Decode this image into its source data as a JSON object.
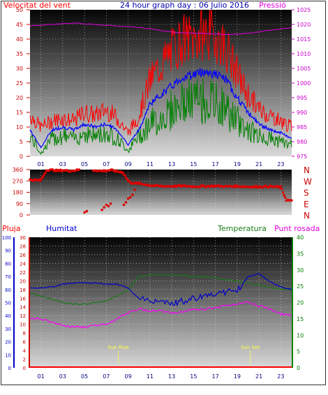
{
  "header": {
    "left_label": "Velocitat del vent",
    "title": "24 hour graph day : 06 Julio 2016",
    "right_label": "Pressió"
  },
  "panel3_labels": {
    "pluja": "Pluja",
    "humitat": "Humitat",
    "temperatura": "Temperatura",
    "punt_rosada": "Punt rosada"
  },
  "colors": {
    "wind_gust": "#ff0000",
    "wind_avg": "#0000ff",
    "wind_min": "#008000",
    "pressure": "#e000e0",
    "direction": "#dd0000",
    "humidity": "#0000cc",
    "temperature": "#1a7a1a",
    "dewpoint": "#ff00ff",
    "rain": "#ff0000",
    "sun_markers": "#ffff44"
  },
  "chart_data": [
    {
      "type": "line",
      "name": "wind_pressure",
      "x_tick_labels": [
        "01",
        "03",
        "05",
        "07",
        "09",
        "11",
        "13",
        "15",
        "17",
        "19",
        "21",
        "23"
      ],
      "y_left_label": "Velocitat del vent",
      "y_left_range": [
        0,
        50
      ],
      "y_left_ticks": [
        "0",
        "5",
        "10",
        "15",
        "20",
        "25",
        "30",
        "35",
        "40",
        "45",
        "50"
      ],
      "y_right_label": "Pressió",
      "y_right_range": [
        975,
        1025
      ],
      "y_right_ticks": [
        "975",
        "980",
        "985",
        "990",
        "995",
        "1000",
        "1005",
        "1010",
        "1015",
        "1020",
        "1025"
      ],
      "series": [
        {
          "name": "gust",
          "x": [
            0,
            1,
            2,
            3,
            4,
            5,
            6,
            7,
            8,
            9,
            10,
            11,
            12,
            13,
            14,
            15,
            16,
            17,
            18,
            19,
            20,
            21,
            22,
            23,
            24
          ],
          "values": [
            14,
            10,
            12,
            13,
            12,
            15,
            14,
            16,
            13,
            8,
            14,
            26,
            31,
            36,
            40,
            40,
            42,
            41,
            37,
            28,
            21,
            16,
            14,
            12,
            10
          ]
        },
        {
          "name": "average",
          "x": [
            0,
            1,
            2,
            3,
            4,
            5,
            6,
            7,
            8,
            9,
            10,
            11,
            12,
            13,
            14,
            15,
            16,
            17,
            18,
            19,
            20,
            21,
            22,
            23,
            24
          ],
          "values": [
            9,
            3,
            9,
            10,
            9,
            11,
            10,
            11,
            9,
            4,
            9,
            18,
            21,
            24,
            27,
            28,
            29,
            28,
            26,
            20,
            15,
            11,
            9,
            8,
            6
          ]
        },
        {
          "name": "minimum",
          "x": [
            0,
            1,
            2,
            3,
            4,
            5,
            6,
            7,
            8,
            9,
            10,
            11,
            12,
            13,
            14,
            15,
            16,
            17,
            18,
            19,
            20,
            21,
            22,
            23,
            24
          ],
          "values": [
            7,
            1,
            6,
            7,
            6,
            8,
            7,
            8,
            6,
            2,
            7,
            11,
            13,
            16,
            18,
            19,
            19,
            18,
            16,
            12,
            9,
            7,
            6,
            5,
            4
          ]
        },
        {
          "name": "pressure",
          "x": [
            0,
            2,
            4,
            6,
            8,
            10,
            12,
            14,
            16,
            18,
            20,
            22,
            24
          ],
          "values": [
            1019.5,
            1020,
            1020.5,
            1020,
            1019.5,
            1019,
            1018,
            1017,
            1017,
            1016.5,
            1017,
            1018,
            1019
          ]
        }
      ]
    },
    {
      "type": "scatter",
      "name": "wind_direction",
      "x_tick_labels": [],
      "y_range": [
        0,
        360
      ],
      "y_ticks": [
        "0",
        "90",
        "180",
        "270",
        "360"
      ],
      "y_right_letters": [
        "N",
        "W",
        "S",
        "E",
        "N"
      ],
      "series": [
        {
          "name": "direction",
          "x": [
            0,
            0.5,
            1,
            1.5,
            2,
            2.5,
            3,
            3.5,
            4,
            4.5,
            5,
            5.5,
            6,
            6.5,
            7,
            7.5,
            8,
            8.5,
            9,
            9.5,
            10,
            11,
            12,
            13,
            14,
            15,
            16,
            17,
            18,
            19,
            20,
            21,
            22,
            23,
            23.5,
            24
          ],
          "values": [
            280,
            275,
            275,
            355,
            360,
            350,
            355,
            350,
            352,
            360,
            345,
            350,
            355,
            348,
            352,
            355,
            345,
            340,
            270,
            250,
            250,
            235,
            228,
            228,
            230,
            226,
            228,
            230,
            226,
            228,
            224,
            224,
            226,
            220,
            120,
            110
          ]
        },
        {
          "name": "direction_scatter",
          "x": [
            5,
            5.2,
            6.6,
            6.8,
            7.0,
            7.2,
            7.4,
            8.6,
            8.8,
            9.0,
            9.2,
            9.4,
            9.6
          ],
          "values": [
            20,
            30,
            40,
            60,
            80,
            70,
            90,
            80,
            100,
            130,
            140,
            160,
            200
          ]
        }
      ]
    },
    {
      "type": "line",
      "name": "humidity_temperature",
      "x_tick_labels": [
        "01",
        "03",
        "05",
        "07",
        "09",
        "11",
        "13",
        "15",
        "17",
        "19",
        "21",
        "23"
      ],
      "y_pluja_range": [
        0,
        30
      ],
      "y_pluja_ticks": [
        "0",
        "2",
        "4",
        "6",
        "8",
        "10",
        "12",
        "14",
        "16",
        "18",
        "20",
        "22",
        "24",
        "26",
        "28",
        "30"
      ],
      "y_humitat_range": [
        0,
        100
      ],
      "y_humitat_ticks": [
        "0",
        "10",
        "20",
        "30",
        "40",
        "50",
        "60",
        "70",
        "80",
        "90",
        "100"
      ],
      "y_right_range": [
        0,
        40
      ],
      "y_right_ticks": [
        "0",
        "5",
        "10",
        "15",
        "20",
        "25",
        "30",
        "35",
        "40"
      ],
      "sun_markers": [
        {
          "label": "Sun Rise",
          "x": 8.1
        },
        {
          "label": "Sun Set",
          "x": 20.2
        }
      ],
      "series": [
        {
          "name": "Humitat",
          "x": [
            0,
            1,
            2,
            3,
            4,
            5,
            6,
            7,
            8,
            9,
            10,
            11,
            12,
            13,
            14,
            15,
            16,
            17,
            18,
            19,
            20,
            21,
            22,
            23,
            24
          ],
          "values": [
            61,
            61,
            62,
            64,
            65,
            65,
            65,
            64,
            64,
            61,
            53,
            52,
            50,
            49,
            51,
            53,
            55,
            57,
            58,
            59,
            70,
            72,
            66,
            62,
            60
          ]
        },
        {
          "name": "Temperatura",
          "x": [
            0,
            1,
            2,
            3,
            4,
            5,
            6,
            7,
            8,
            9,
            10,
            11,
            12,
            13,
            14,
            15,
            16,
            17,
            18,
            19,
            20,
            21,
            22,
            23,
            24
          ],
          "values": [
            23,
            22,
            21,
            20,
            19.5,
            19.5,
            20,
            20.5,
            22,
            24,
            28,
            28.5,
            28.5,
            28.5,
            28.5,
            28,
            28,
            27.5,
            27,
            26.5,
            26,
            25.5,
            24.5,
            24,
            24
          ]
        },
        {
          "name": "Punt rosada",
          "x": [
            0,
            1,
            2,
            3,
            4,
            5,
            6,
            7,
            8,
            9,
            10,
            11,
            12,
            13,
            14,
            15,
            16,
            17,
            18,
            19,
            20,
            21,
            22,
            23,
            24
          ],
          "values": [
            15,
            15,
            14,
            13,
            12.5,
            12.5,
            13,
            13.5,
            15,
            17,
            18,
            17.5,
            17.5,
            17,
            17,
            18,
            18,
            18.5,
            19,
            19.5,
            20,
            19,
            18,
            16.5,
            16
          ]
        },
        {
          "name": "Pluja",
          "x": [
            0,
            24
          ],
          "values": [
            0,
            0
          ]
        }
      ]
    }
  ]
}
